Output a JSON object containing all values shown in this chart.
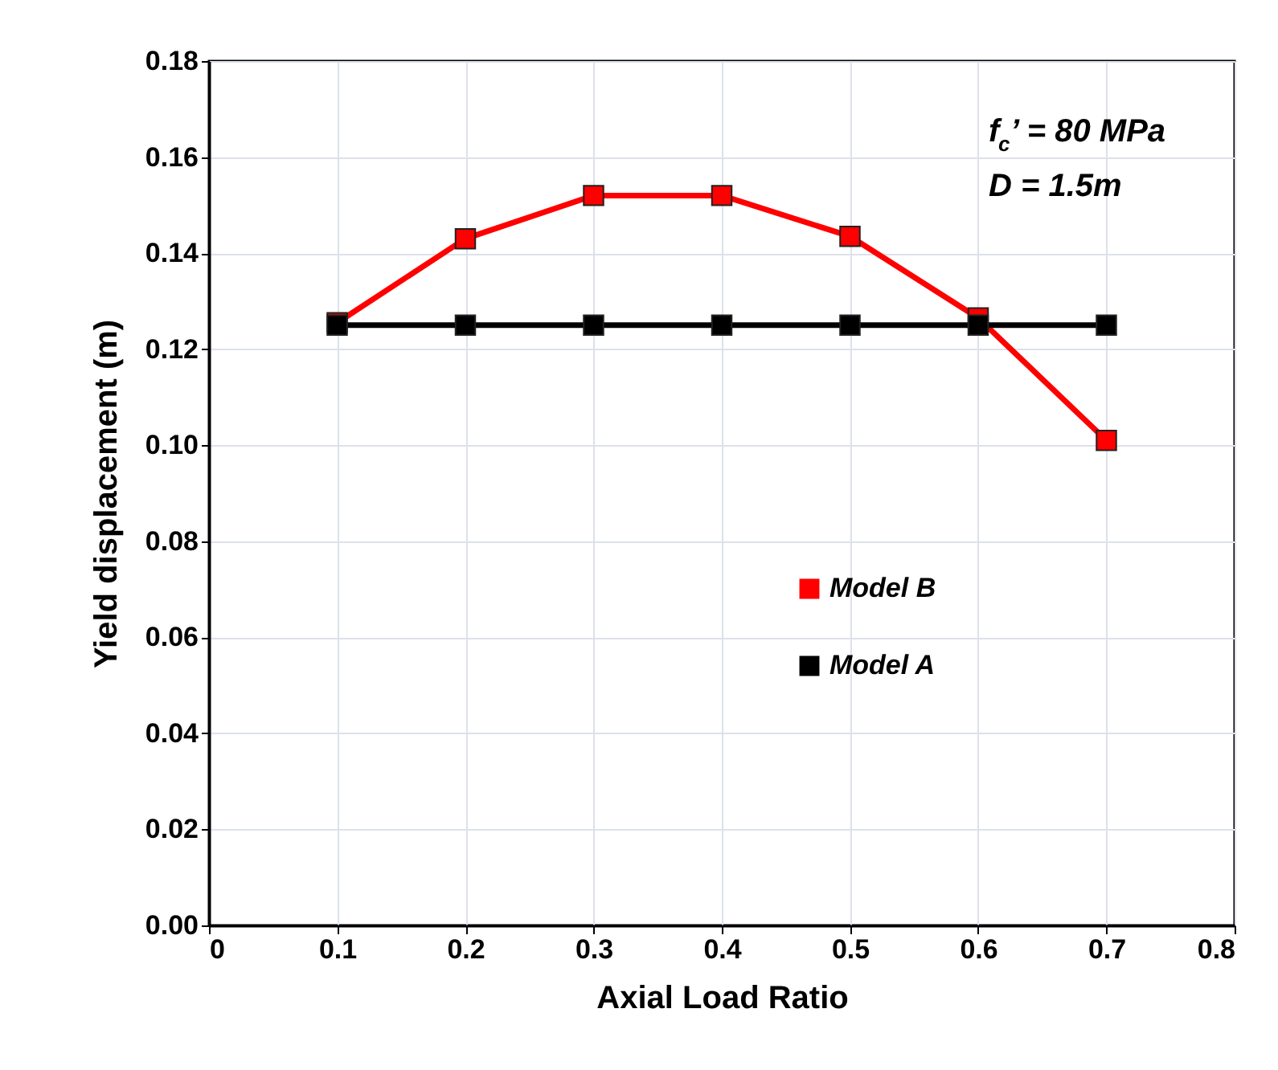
{
  "chart_data": {
    "type": "line",
    "xlabel": "Axial Load Ratio",
    "ylabel": "Yield displacement (m)",
    "x": [
      0.1,
      0.2,
      0.3,
      0.4,
      0.5,
      0.6,
      0.7
    ],
    "series": [
      {
        "name": "Model B",
        "color": "#ff0000",
        "values": [
          0.1255,
          0.143,
          0.152,
          0.152,
          0.1435,
          0.1265,
          0.101
        ]
      },
      {
        "name": "Model A",
        "color": "#000000",
        "values": [
          0.125,
          0.125,
          0.125,
          0.125,
          0.125,
          0.125,
          0.125
        ]
      }
    ],
    "xlim": [
      0,
      0.8
    ],
    "xticks": [
      0,
      0.1,
      0.2,
      0.3,
      0.4,
      0.5,
      0.6,
      0.7,
      0.8
    ],
    "ylim": [
      0,
      0.18
    ],
    "yticks": [
      {
        "value": 0,
        "label": "0.00"
      },
      0.02,
      0.04,
      0.06,
      0.08,
      {
        "value": 0.1,
        "label": "0.10"
      },
      0.12,
      0.14,
      0.16,
      0.18
    ],
    "grid": true,
    "legend": "right",
    "marker": "square",
    "line_style": "solid",
    "annotations": [
      "f$_{c}$’ = 80 MPa",
      "D = 1.5m"
    ]
  }
}
